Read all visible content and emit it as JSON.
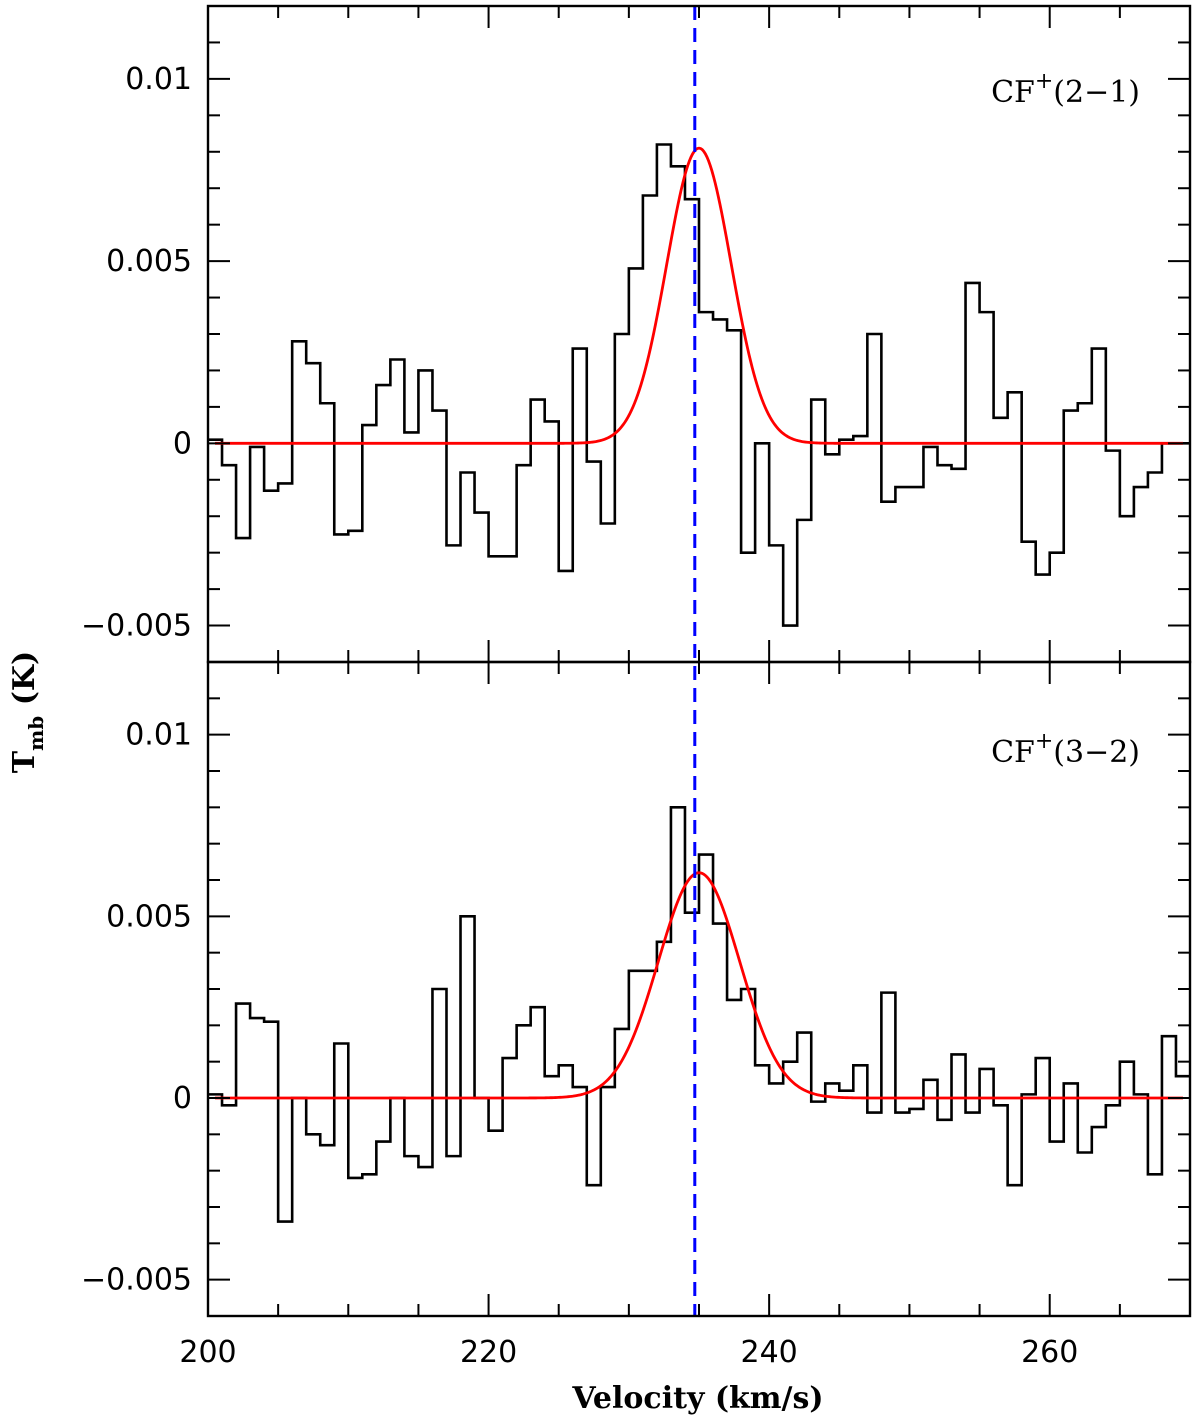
{
  "chart_data": [
    {
      "type": "line",
      "panel": "top",
      "label": {
        "species": "CF",
        "superscript": "+",
        "transition": "(2−1)"
      },
      "xlabel": "Velocity (km/s)",
      "ylabel": {
        "main": "T",
        "sub": "mb",
        "unit": " (K)"
      },
      "xlim": [
        200,
        270
      ],
      "ylim": [
        -0.006,
        0.012
      ],
      "x_ticks": [
        200,
        220,
        240,
        260
      ],
      "y_ticks": [
        -0.005,
        0,
        0.005,
        0.01
      ],
      "y_tick_labels": [
        "−0.005",
        "0",
        "0.005",
        "0.01"
      ],
      "reference_velocity": 234.7,
      "series": [
        {
          "style": "histogram",
          "color": "#000000",
          "x": [
            200.5,
            201.5,
            202.5,
            203.5,
            204.5,
            205.5,
            206.5,
            207.5,
            208.5,
            209.5,
            210.5,
            211.5,
            212.5,
            213.5,
            214.5,
            215.5,
            216.5,
            217.5,
            218.5,
            219.5,
            220.5,
            221.5,
            222.5,
            223.5,
            224.5,
            225.5,
            226.5,
            227.5,
            228.5,
            229.5,
            230.5,
            231.5,
            232.5,
            233.5,
            234.5,
            235.5,
            236.5,
            237.5,
            238.5,
            239.5,
            240.5,
            241.5,
            242.5,
            243.5,
            244.5,
            245.5,
            246.5,
            247.5,
            248.5,
            249.5,
            250.5,
            251.5,
            252.5,
            253.5,
            254.5,
            255.5,
            256.5,
            257.5,
            258.5,
            259.5,
            260.5,
            261.5,
            262.5,
            263.5,
            264.5,
            265.5,
            266.5,
            267.5,
            268.5,
            269.5
          ],
          "values": [
            0.0001,
            -0.0006,
            -0.0026,
            -0.0001,
            -0.0013,
            -0.0011,
            0.0028,
            0.0022,
            0.0011,
            -0.0025,
            -0.0024,
            0.0005,
            0.0016,
            0.0023,
            0.0003,
            0.002,
            0.0009,
            -0.0028,
            -0.0008,
            -0.0019,
            -0.0031,
            -0.0031,
            -0.0006,
            0.0012,
            0.0006,
            -0.0035,
            0.0026,
            -0.0005,
            -0.0022,
            0.003,
            0.0048,
            0.0068,
            0.0082,
            0.0076,
            0.0067,
            0.0036,
            0.0034,
            0.0031,
            -0.003,
            0.0,
            -0.0028,
            -0.005,
            -0.0021,
            0.0012,
            -0.0003,
            0.0001,
            0.0002,
            0.003,
            -0.0016,
            -0.0012,
            -0.0012,
            -0.0001,
            -0.0006,
            -0.0007,
            0.0044,
            0.0036,
            0.0007,
            0.0014,
            -0.0027,
            -0.0036,
            -0.003,
            0.0009,
            0.0011,
            0.0026,
            -0.0002,
            -0.002,
            -0.0012,
            -0.0008,
            0.0,
            0.0
          ]
        },
        {
          "style": "gaussian-fit",
          "color": "#ff0000",
          "amplitude": 0.0081,
          "center": 235.0,
          "sigma": 2.3,
          "x_range": [
            200.5,
            269.5
          ]
        }
      ]
    },
    {
      "type": "line",
      "panel": "bottom",
      "label": {
        "species": "CF",
        "superscript": "+",
        "transition": "(3−2)"
      },
      "xlabel": "Velocity (km/s)",
      "ylabel": {
        "main": "T",
        "sub": "mb",
        "unit": " (K)"
      },
      "xlim": [
        200,
        270
      ],
      "ylim": [
        -0.006,
        0.012
      ],
      "x_ticks": [
        200,
        220,
        240,
        260
      ],
      "x_tick_labels": [
        "200",
        "220",
        "240",
        "260"
      ],
      "y_ticks": [
        -0.005,
        0,
        0.005,
        0.01
      ],
      "y_tick_labels": [
        "−0.005",
        "0",
        "0.005",
        "0.01"
      ],
      "reference_velocity": 234.7,
      "series": [
        {
          "style": "histogram",
          "color": "#000000",
          "x": [
            200.5,
            201.5,
            202.5,
            203.5,
            204.5,
            205.5,
            206.5,
            207.5,
            208.5,
            209.5,
            210.5,
            211.5,
            212.5,
            213.5,
            214.5,
            215.5,
            216.5,
            217.5,
            218.5,
            219.5,
            220.5,
            221.5,
            222.5,
            223.5,
            224.5,
            225.5,
            226.5,
            227.5,
            228.5,
            229.5,
            230.5,
            231.5,
            232.5,
            233.5,
            234.5,
            235.5,
            236.5,
            237.5,
            238.5,
            239.5,
            240.5,
            241.5,
            242.5,
            243.5,
            244.5,
            245.5,
            246.5,
            247.5,
            248.5,
            249.5,
            250.5,
            251.5,
            252.5,
            253.5,
            254.5,
            255.5,
            256.5,
            257.5,
            258.5,
            259.5,
            260.5,
            261.5,
            262.5,
            263.5,
            264.5,
            265.5,
            266.5,
            267.5,
            268.5,
            269.5
          ],
          "values": [
            0.0001,
            -0.0002,
            0.0026,
            0.0022,
            0.0021,
            -0.0034,
            0.0,
            -0.001,
            -0.0013,
            0.0015,
            -0.0022,
            -0.0021,
            -0.0012,
            0.0,
            -0.0016,
            -0.0019,
            0.003,
            -0.0016,
            0.005,
            0.0,
            -0.0009,
            0.0011,
            0.002,
            0.0025,
            0.0006,
            0.0009,
            0.0003,
            -0.0024,
            0.0003,
            0.0019,
            0.0035,
            0.0035,
            0.0043,
            0.008,
            0.0051,
            0.0067,
            0.0048,
            0.0027,
            0.003,
            0.0009,
            0.0004,
            0.001,
            0.0018,
            -0.0001,
            0.0004,
            0.0002,
            0.0009,
            -0.0004,
            0.0029,
            -0.0004,
            -0.0003,
            0.0005,
            -0.0006,
            0.0012,
            -0.0004,
            0.0008,
            -0.0002,
            -0.0024,
            0.0001,
            0.0011,
            -0.0012,
            0.0004,
            -0.0015,
            -0.0008,
            -0.0002,
            0.001,
            0.0001,
            -0.0021,
            0.0017,
            0.0006
          ]
        },
        {
          "style": "gaussian-fit",
          "color": "#ff0000",
          "amplitude": 0.0062,
          "center": 235.0,
          "sigma": 2.9,
          "x_range": [
            200.5,
            269.5
          ]
        }
      ]
    }
  ],
  "colors": {
    "reference_line": "#0000ff",
    "fit": "#ff0000",
    "spectrum": "#000000"
  }
}
